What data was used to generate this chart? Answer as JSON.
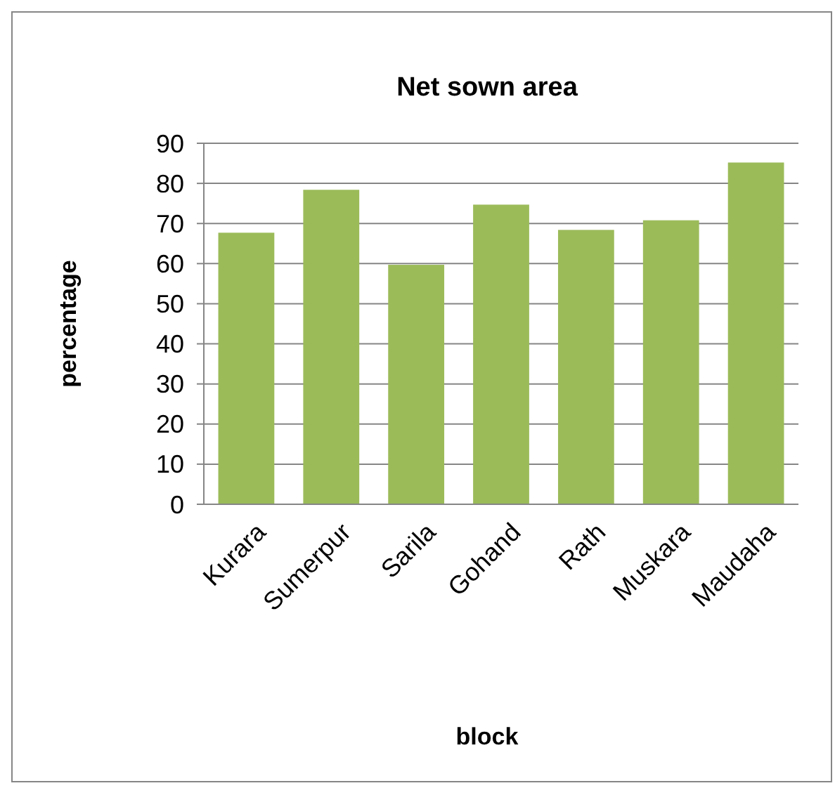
{
  "chart_data": {
    "type": "bar",
    "title": "Net sown area",
    "xlabel": "block",
    "ylabel": "percentage",
    "categories": [
      "Kurara",
      "Sumerpur",
      "Sarila",
      "Gohand",
      "Rath",
      "Muskara",
      "Maudaha"
    ],
    "values": [
      67.7,
      78.4,
      59.7,
      74.7,
      68.4,
      70.8,
      85.2
    ],
    "color": "#9bbb59",
    "ylim": [
      0,
      90
    ],
    "yticks": [
      0,
      10,
      20,
      30,
      40,
      50,
      60,
      70,
      80,
      90
    ],
    "grid": "y"
  }
}
